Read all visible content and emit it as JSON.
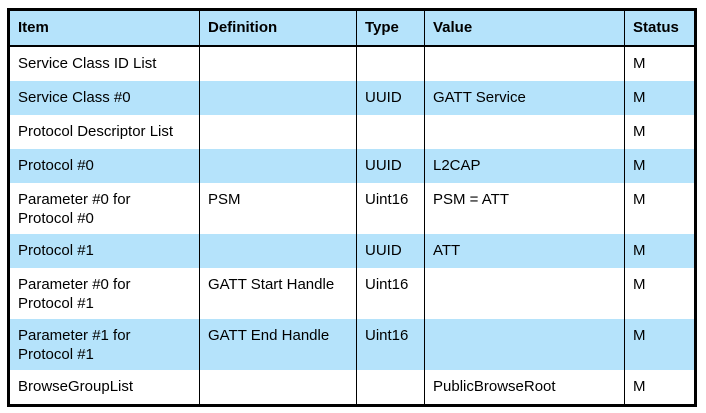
{
  "colors": {
    "shaded_row_bg": "#B5E3FB",
    "plain_row_bg": "#FFFFFF",
    "border": "#000000",
    "text": "#000000"
  },
  "table": {
    "headers": [
      "Item",
      "Definition",
      "Type",
      "Value",
      "Status"
    ],
    "rows": [
      {
        "item": "Service Class ID List",
        "definition": "",
        "type": "",
        "value": "",
        "status": "M",
        "shaded": false
      },
      {
        "item": "Service Class #0",
        "definition": "",
        "type": "UUID",
        "value": "GATT Service",
        "status": "M",
        "shaded": true
      },
      {
        "item": "Protocol Descriptor List",
        "definition": "",
        "type": "",
        "value": "",
        "status": "M",
        "shaded": false
      },
      {
        "item": "Protocol #0",
        "definition": "",
        "type": "UUID",
        "value": "L2CAP",
        "status": "M",
        "shaded": true
      },
      {
        "item": "Parameter #0 for Protocol #0",
        "definition": "PSM",
        "type": "Uint16",
        "value": "PSM = ATT",
        "status": "M",
        "shaded": false
      },
      {
        "item": "Protocol #1",
        "definition": "",
        "type": "UUID",
        "value": "ATT",
        "status": "M",
        "shaded": true
      },
      {
        "item": "Parameter #0 for Protocol #1",
        "definition": "GATT Start Handle",
        "type": "Uint16",
        "value": "",
        "status": "M",
        "shaded": false
      },
      {
        "item": "Parameter #1 for Protocol #1",
        "definition": "GATT End Handle",
        "type": "Uint16",
        "value": "",
        "status": "M",
        "shaded": true
      },
      {
        "item": "BrowseGroupList",
        "definition": "",
        "type": "",
        "value": "PublicBrowseRoot",
        "status": "M",
        "shaded": false
      }
    ]
  }
}
